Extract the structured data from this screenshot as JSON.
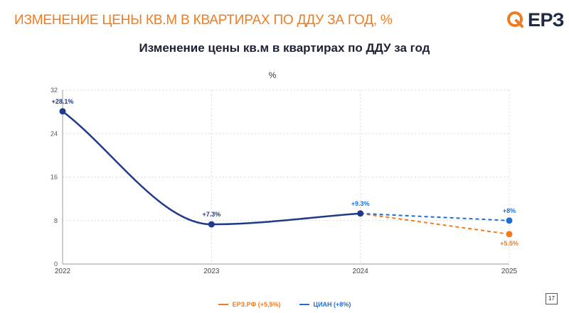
{
  "header": {
    "title": "ИЗМЕНЕНИЕ ЦЕНЫ КВ.М В КВАРТИРАХ ПО ДДУ ЗА ГОД, %",
    "logo_text": "ЕРЗ",
    "logo_color": "#f07c22"
  },
  "page_number": "17",
  "chart_data": {
    "type": "line",
    "title": "Изменение цены кв.м в квартирах по ДДУ за год",
    "unit": "%",
    "xlabel": "",
    "ylabel": "",
    "x": [
      "2022",
      "2023",
      "2024",
      "2025"
    ],
    "ylim": [
      0,
      32
    ],
    "yticks": [
      0,
      8,
      16,
      24,
      32
    ],
    "grid": true,
    "legend_position": "bottom",
    "history": {
      "values": [
        28.1,
        7.3,
        9.3
      ],
      "labels": [
        "+28.1%",
        "+7.3%",
        "+9.3%"
      ],
      "color": "#1f3a8a"
    },
    "series": [
      {
        "name": "ЕРЗ.РФ (+5,5%)",
        "color": "#f07c22",
        "values": [
          null,
          null,
          9.3,
          5.5
        ],
        "labels": [
          null,
          null,
          null,
          "+5.5%"
        ]
      },
      {
        "name": "ЦИАН (+8%)",
        "color": "#1f6fd1",
        "values": [
          null,
          null,
          9.3,
          8.0
        ],
        "labels": [
          null,
          null,
          "+9.3%",
          "+8%"
        ]
      }
    ]
  }
}
